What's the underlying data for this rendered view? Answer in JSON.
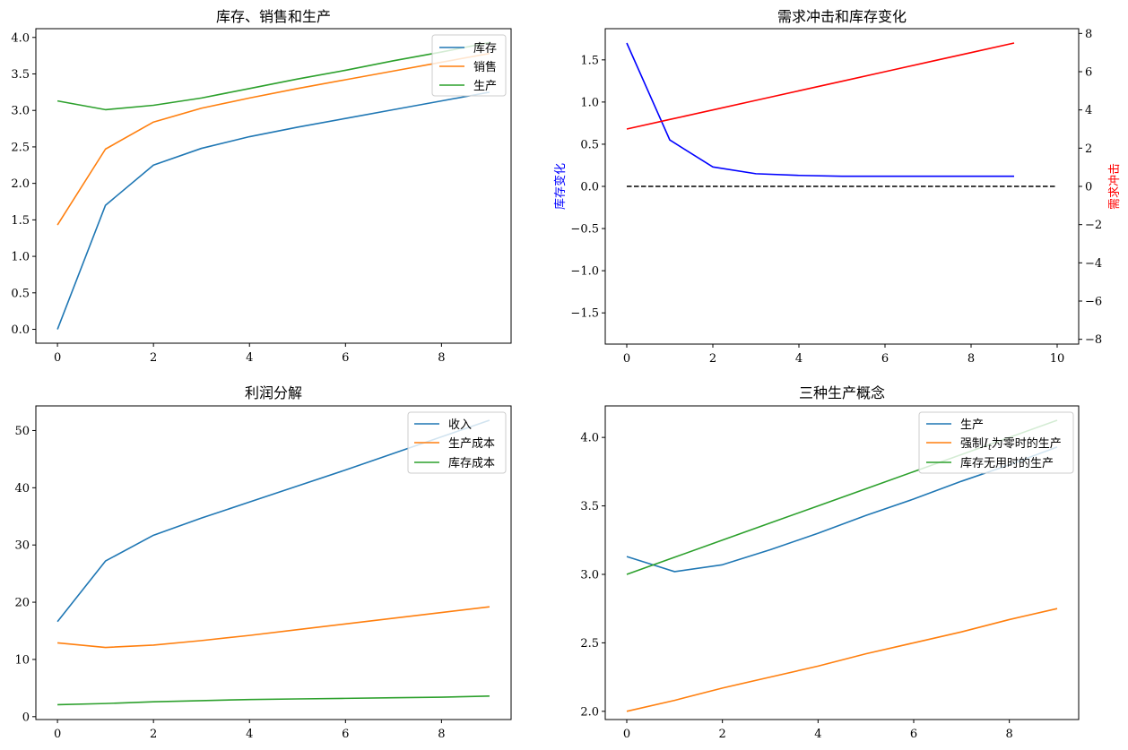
{
  "chart_data": [
    {
      "id": "p1",
      "type": "line",
      "title": "库存、销售和生产",
      "x": [
        0,
        1,
        2,
        3,
        4,
        5,
        6,
        7,
        8,
        9
      ],
      "series": [
        {
          "name": "库存",
          "color": "#1f77b4",
          "values": [
            0.0,
            1.7,
            2.25,
            2.48,
            2.64,
            2.77,
            2.89,
            3.01,
            3.13,
            3.25
          ]
        },
        {
          "name": "销售",
          "color": "#ff7f0e",
          "values": [
            1.43,
            2.47,
            2.84,
            3.03,
            3.17,
            3.3,
            3.42,
            3.54,
            3.66,
            3.78
          ]
        },
        {
          "name": "生产",
          "color": "#2ca02c",
          "values": [
            3.13,
            3.01,
            3.07,
            3.17,
            3.3,
            3.43,
            3.55,
            3.68,
            3.8,
            3.93
          ]
        }
      ],
      "xlim": [
        -0.45,
        9.45
      ],
      "ylim": [
        -0.19,
        4.12
      ],
      "xticks": [
        0,
        2,
        4,
        6,
        8
      ],
      "yticks": [
        0.0,
        0.5,
        1.0,
        1.5,
        2.0,
        2.5,
        3.0,
        3.5,
        4.0
      ],
      "ytick_labels": [
        "0.0",
        "0.5",
        "1.0",
        "1.5",
        "2.0",
        "2.5",
        "3.0",
        "3.5",
        "4.0"
      ],
      "legend": "top-right",
      "grid": false
    },
    {
      "id": "p2",
      "type": "line",
      "title": "需求冲击和库存变化",
      "ylabel": "库存变化",
      "ylabel_color": "#0000ff",
      "ylabel_right": "需求冲击",
      "ylabel_right_color": "#ff0000",
      "x": [
        0,
        1,
        2,
        3,
        4,
        5,
        6,
        7,
        8,
        9
      ],
      "series": [
        {
          "color": "#0000ff",
          "axis": "left",
          "values": [
            1.7,
            0.55,
            0.23,
            0.15,
            0.13,
            0.12,
            0.12,
            0.12,
            0.12,
            0.12
          ]
        },
        {
          "color": "#ff0000",
          "axis": "right",
          "values": [
            3.0,
            3.5,
            4.0,
            4.5,
            5.0,
            5.5,
            6.0,
            6.5,
            7.0,
            7.5
          ]
        }
      ],
      "hline": {
        "y": 0,
        "x0": 0,
        "x1": 10,
        "color": "#000000",
        "dash": true
      },
      "xlim": [
        -0.5,
        10.5
      ],
      "ylim": [
        -1.87,
        1.87
      ],
      "ylim_right": [
        -8.25,
        8.25
      ],
      "xticks": [
        0,
        2,
        4,
        6,
        8,
        10
      ],
      "yticks": [
        -1.5,
        -1.0,
        -0.5,
        0.0,
        0.5,
        1.0,
        1.5
      ],
      "ytick_labels": [
        "−1.5",
        "−1.0",
        "−0.5",
        "0.0",
        "0.5",
        "1.0",
        "1.5"
      ],
      "yticks_right": [
        -8,
        -6,
        -4,
        -2,
        0,
        2,
        4,
        6,
        8
      ],
      "ytick_labels_right": [
        "−8",
        "−6",
        "−4",
        "−2",
        "0",
        "2",
        "4",
        "6",
        "8"
      ],
      "grid": false
    },
    {
      "id": "p3",
      "type": "line",
      "title": "利润分解",
      "x": [
        0,
        1,
        2,
        3,
        4,
        5,
        6,
        7,
        8,
        9
      ],
      "series": [
        {
          "name": "收入",
          "color": "#1f77b4",
          "values": [
            16.6,
            27.2,
            31.7,
            34.7,
            37.5,
            40.3,
            43.1,
            46.0,
            48.9,
            51.8
          ]
        },
        {
          "name": "生产成本",
          "color": "#ff7f0e",
          "values": [
            12.9,
            12.1,
            12.5,
            13.3,
            14.2,
            15.2,
            16.2,
            17.2,
            18.2,
            19.2
          ]
        },
        {
          "name": "库存成本",
          "color": "#2ca02c",
          "values": [
            2.1,
            2.3,
            2.6,
            2.8,
            3.0,
            3.1,
            3.2,
            3.3,
            3.4,
            3.6
          ]
        }
      ],
      "xlim": [
        -0.45,
        9.45
      ],
      "ylim": [
        -0.5,
        54.3
      ],
      "xticks": [
        0,
        2,
        4,
        6,
        8
      ],
      "yticks": [
        0,
        10,
        20,
        30,
        40,
        50
      ],
      "ytick_labels": [
        "0",
        "10",
        "20",
        "30",
        "40",
        "50"
      ],
      "legend": "top-right",
      "grid": false
    },
    {
      "id": "p4",
      "type": "line",
      "title": "三种生产概念",
      "x": [
        0,
        1,
        2,
        3,
        4,
        5,
        6,
        7,
        8,
        9
      ],
      "series": [
        {
          "name": "生产",
          "color": "#1f77b4",
          "values": [
            3.13,
            3.02,
            3.07,
            3.18,
            3.3,
            3.43,
            3.55,
            3.68,
            3.8,
            3.93
          ]
        },
        {
          "name": "强制It为零时的生产",
          "name_prefix": "强制",
          "name_var": "I",
          "name_sub": "t",
          "name_suffix": "为零时的生产",
          "color": "#ff7f0e",
          "values": [
            2.0,
            2.08,
            2.17,
            2.25,
            2.33,
            2.42,
            2.5,
            2.58,
            2.67,
            2.75
          ]
        },
        {
          "name": "库存无用时的生产",
          "color": "#2ca02c",
          "values": [
            3.0,
            3.125,
            3.25,
            3.375,
            3.5,
            3.625,
            3.75,
            3.875,
            4.0,
            4.125
          ]
        }
      ],
      "xlim": [
        -0.45,
        9.45
      ],
      "ylim": [
        1.94,
        4.23
      ],
      "xticks": [
        0,
        2,
        4,
        6,
        8
      ],
      "yticks": [
        2.0,
        2.5,
        3.0,
        3.5,
        4.0
      ],
      "ytick_labels": [
        "2.0",
        "2.5",
        "3.0",
        "3.5",
        "4.0"
      ],
      "legend": "top-right",
      "grid": false
    }
  ]
}
